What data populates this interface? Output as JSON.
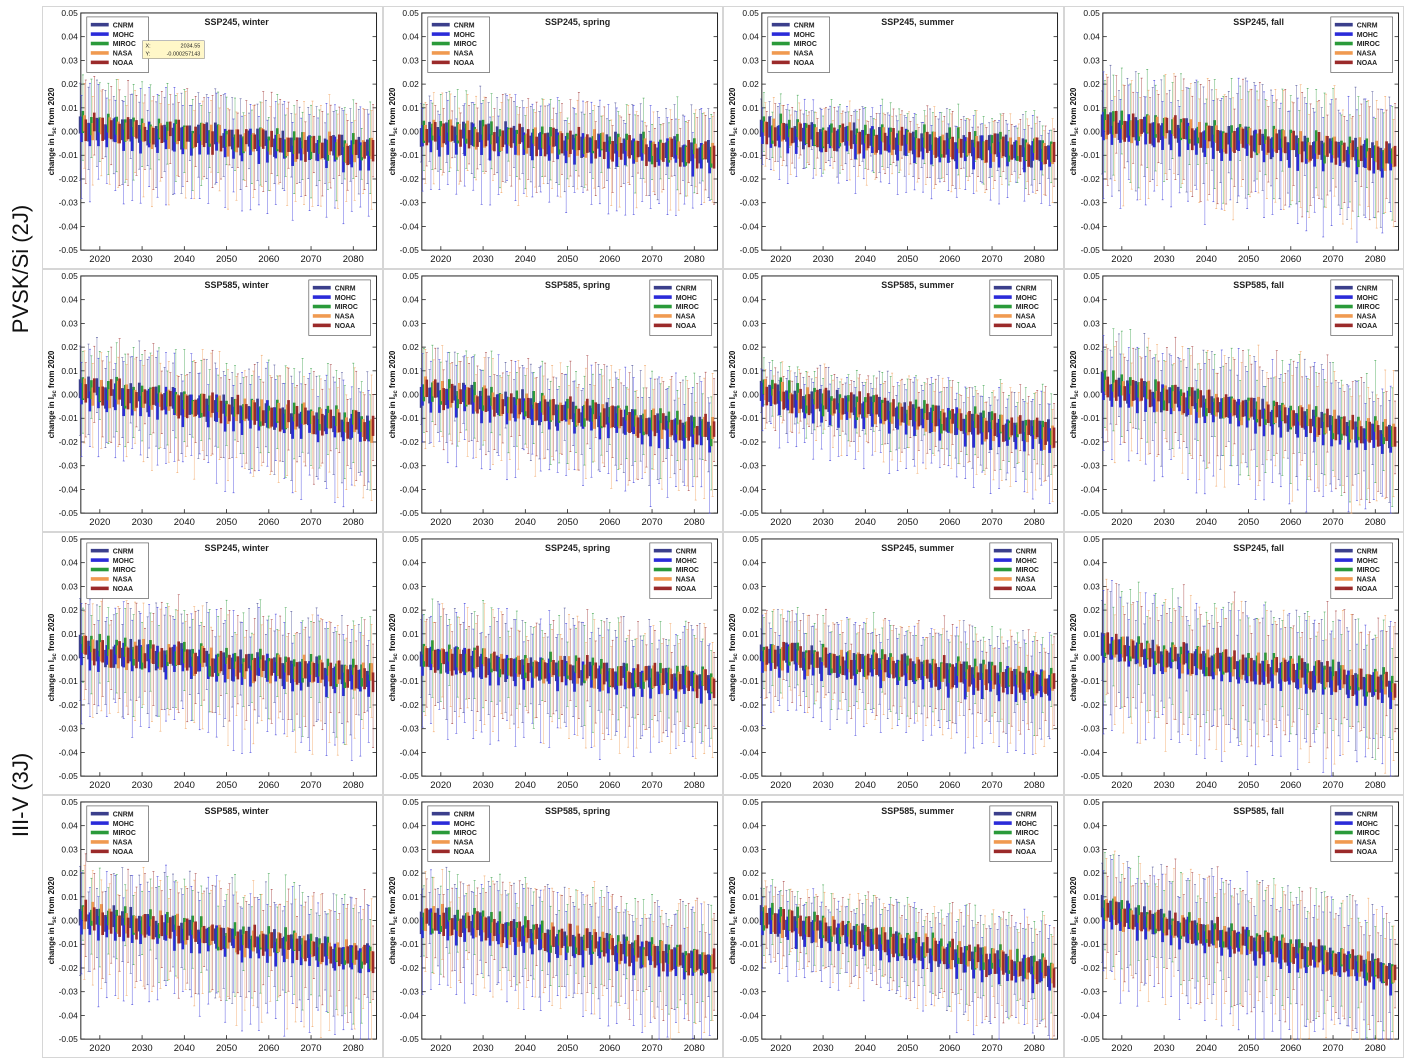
{
  "row_labels": [
    "PVSK/Si (2J)",
    "III-V (3J)"
  ],
  "y_axis_label": "change in I from 2020",
  "y_axis_label_sub": "sc",
  "tooltip": {
    "x_label": "X:",
    "x_value": "2034.55",
    "y_label": "Y:",
    "y_value": "-0.000257143"
  },
  "series_colors": {
    "CNRM": "#3b3f8c",
    "MOHC": "#2b2bd9",
    "MIROC": "#2a9a3a",
    "NASA": "#f09a50",
    "NOAA": "#9b2a2a"
  },
  "chart_data": [
    {
      "type": "box",
      "title": "SSP245, winter",
      "legend": "top-left",
      "ylim": [
        -0.05,
        0.05
      ],
      "yticks": [
        "0.05",
        "0.04",
        "0.03",
        "0.02",
        "0.01",
        "0.00",
        "-0.01",
        "-0.02",
        "-0.03",
        "-0.04",
        "-0.05"
      ],
      "xticks": [
        "2020",
        "2030",
        "2040",
        "2050",
        "2060",
        "2070",
        "2080"
      ],
      "series": [
        "CNRM",
        "MOHC",
        "MIROC",
        "NASA",
        "NOAA"
      ],
      "median_trend": [
        0.002,
        -0.009
      ],
      "whisker": [
        0.018,
        0.016
      ],
      "tooltip": true
    },
    {
      "type": "box",
      "title": "SSP245, spring",
      "legend": "top-left",
      "ylim": [
        -0.05,
        0.05
      ],
      "yticks": [
        "0.05",
        "0.04",
        "0.03",
        "0.02",
        "0.01",
        "0.00",
        "-0.01",
        "-0.02",
        "-0.03",
        "-0.04",
        "-0.05"
      ],
      "xticks": [
        "2020",
        "2030",
        "2040",
        "2050",
        "2060",
        "2070",
        "2080"
      ],
      "series": [
        "CNRM",
        "MOHC",
        "MIROC",
        "NASA",
        "NOAA"
      ],
      "median_trend": [
        0.0,
        -0.01
      ],
      "whisker": [
        0.015,
        0.016
      ]
    },
    {
      "type": "box",
      "title": "SSP245, summer",
      "legend": "top-left",
      "ylim": [
        -0.05,
        0.05
      ],
      "yticks": [
        "0.05",
        "0.04",
        "0.03",
        "0.02",
        "0.01",
        "0.00",
        "-0.01",
        "-0.02",
        "-0.03",
        "-0.04",
        "-0.05"
      ],
      "xticks": [
        "2020",
        "2030",
        "2040",
        "2050",
        "2060",
        "2070",
        "2080"
      ],
      "series": [
        "CNRM",
        "MOHC",
        "MIROC",
        "NASA",
        "NOAA"
      ],
      "median_trend": [
        0.0,
        -0.009
      ],
      "whisker": [
        0.01,
        0.012
      ]
    },
    {
      "type": "box",
      "title": "SSP245, fall",
      "legend": "top-right",
      "ylim": [
        -0.05,
        0.05
      ],
      "yticks": [
        "0.05",
        "0.04",
        "0.03",
        "0.02",
        "0.01",
        "0.00",
        "-0.01",
        "-0.02",
        "-0.03",
        "-0.04",
        "-0.05"
      ],
      "xticks": [
        "2020",
        "2030",
        "2040",
        "2050",
        "2060",
        "2070",
        "2080"
      ],
      "series": [
        "CNRM",
        "MOHC",
        "MIROC",
        "NASA",
        "NOAA"
      ],
      "median_trend": [
        0.003,
        -0.011
      ],
      "whisker": [
        0.02,
        0.022
      ]
    },
    {
      "type": "box",
      "title": "SSP585, winter",
      "legend": "top-right",
      "ylim": [
        -0.05,
        0.05
      ],
      "yticks": [
        "0.05",
        "0.04",
        "0.03",
        "0.02",
        "0.01",
        "0.00",
        "-0.01",
        "-0.02",
        "-0.03",
        "-0.04",
        "-0.05"
      ],
      "xticks": [
        "2020",
        "2030",
        "2040",
        "2050",
        "2060",
        "2070",
        "2080"
      ],
      "series": [
        "CNRM",
        "MOHC",
        "MIROC",
        "NASA",
        "NOAA"
      ],
      "median_trend": [
        0.002,
        -0.014
      ],
      "whisker": [
        0.018,
        0.02
      ]
    },
    {
      "type": "box",
      "title": "SSP585, spring",
      "legend": "top-right",
      "ylim": [
        -0.05,
        0.05
      ],
      "yticks": [
        "0.05",
        "0.04",
        "0.03",
        "0.02",
        "0.01",
        "0.00",
        "-0.01",
        "-0.02",
        "-0.03",
        "-0.04",
        "-0.05"
      ],
      "xticks": [
        "2020",
        "2030",
        "2040",
        "2050",
        "2060",
        "2070",
        "2080"
      ],
      "series": [
        "CNRM",
        "MOHC",
        "MIROC",
        "NASA",
        "NOAA"
      ],
      "median_trend": [
        0.001,
        -0.016
      ],
      "whisker": [
        0.016,
        0.02
      ]
    },
    {
      "type": "box",
      "title": "SSP585, summer",
      "legend": "top-right",
      "ylim": [
        -0.05,
        0.05
      ],
      "yticks": [
        "0.05",
        "0.04",
        "0.03",
        "0.02",
        "0.01",
        "0.00",
        "-0.01",
        "-0.02",
        "-0.03",
        "-0.04",
        "-0.05"
      ],
      "xticks": [
        "2020",
        "2030",
        "2040",
        "2050",
        "2060",
        "2070",
        "2080"
      ],
      "series": [
        "CNRM",
        "MOHC",
        "MIROC",
        "NASA",
        "NOAA"
      ],
      "median_trend": [
        0.0,
        -0.017
      ],
      "whisker": [
        0.01,
        0.016
      ]
    },
    {
      "type": "box",
      "title": "SSP585, fall",
      "legend": "top-right",
      "ylim": [
        -0.05,
        0.05
      ],
      "yticks": [
        "0.05",
        "0.04",
        "0.03",
        "0.02",
        "0.01",
        "0.00",
        "-0.01",
        "-0.02",
        "-0.03",
        "-0.04",
        "-0.05"
      ],
      "xticks": [
        "2020",
        "2030",
        "2040",
        "2050",
        "2060",
        "2070",
        "2080"
      ],
      "series": [
        "CNRM",
        "MOHC",
        "MIROC",
        "NASA",
        "NOAA"
      ],
      "median_trend": [
        0.003,
        -0.017
      ],
      "whisker": [
        0.02,
        0.024
      ]
    },
    {
      "type": "box",
      "title": "SSP245, winter",
      "legend": "top-left",
      "ylim": [
        -0.05,
        0.05
      ],
      "yticks": [
        "0.05",
        "0.04",
        "0.03",
        "0.02",
        "0.01",
        "0.00",
        "-0.01",
        "-0.02",
        "-0.03",
        "-0.04",
        "-0.05"
      ],
      "xticks": [
        "2020",
        "2030",
        "2040",
        "2050",
        "2060",
        "2070",
        "2080"
      ],
      "series": [
        "CNRM",
        "MOHC",
        "MIROC",
        "NASA",
        "NOAA"
      ],
      "median_trend": [
        0.003,
        -0.008
      ],
      "whisker": [
        0.02,
        0.022
      ]
    },
    {
      "type": "box",
      "title": "SSP245, spring",
      "legend": "top-right",
      "ylim": [
        -0.05,
        0.05
      ],
      "yticks": [
        "0.05",
        "0.04",
        "0.03",
        "0.02",
        "0.01",
        "0.00",
        "-0.01",
        "-0.02",
        "-0.03",
        "-0.04",
        "-0.05"
      ],
      "xticks": [
        "2020",
        "2030",
        "2040",
        "2050",
        "2060",
        "2070",
        "2080"
      ],
      "series": [
        "CNRM",
        "MOHC",
        "MIROC",
        "NASA",
        "NOAA"
      ],
      "median_trend": [
        0.0,
        -0.011
      ],
      "whisker": [
        0.02,
        0.022
      ]
    },
    {
      "type": "box",
      "title": "SSP245, summer",
      "legend": "top-right",
      "ylim": [
        -0.05,
        0.05
      ],
      "yticks": [
        "0.05",
        "0.04",
        "0.03",
        "0.02",
        "0.01",
        "0.00",
        "-0.01",
        "-0.02",
        "-0.03",
        "-0.04",
        "-0.05"
      ],
      "xticks": [
        "2020",
        "2030",
        "2040",
        "2050",
        "2060",
        "2070",
        "2080"
      ],
      "series": [
        "CNRM",
        "MOHC",
        "MIROC",
        "NASA",
        "NOAA"
      ],
      "median_trend": [
        0.001,
        -0.011
      ],
      "whisker": [
        0.016,
        0.018
      ]
    },
    {
      "type": "box",
      "title": "SSP245, fall",
      "legend": "top-right",
      "ylim": [
        -0.05,
        0.05
      ],
      "yticks": [
        "0.05",
        "0.04",
        "0.03",
        "0.02",
        "0.01",
        "0.00",
        "-0.01",
        "-0.02",
        "-0.03",
        "-0.04",
        "-0.05"
      ],
      "xticks": [
        "2020",
        "2030",
        "2040",
        "2050",
        "2060",
        "2070",
        "2080"
      ],
      "series": [
        "CNRM",
        "MOHC",
        "MIROC",
        "NASA",
        "NOAA"
      ],
      "median_trend": [
        0.004,
        -0.012
      ],
      "whisker": [
        0.024,
        0.026
      ]
    },
    {
      "type": "box",
      "title": "SSP585, winter",
      "legend": "top-left",
      "ylim": [
        -0.05,
        0.05
      ],
      "yticks": [
        "0.05",
        "0.04",
        "0.03",
        "0.02",
        "0.01",
        "0.00",
        "-0.01",
        "-0.02",
        "-0.03",
        "-0.04",
        "-0.05"
      ],
      "xticks": [
        "2020",
        "2030",
        "2040",
        "2050",
        "2060",
        "2070",
        "2080"
      ],
      "series": [
        "CNRM",
        "MOHC",
        "MIROC",
        "NASA",
        "NOAA"
      ],
      "median_trend": [
        0.002,
        -0.016
      ],
      "whisker": [
        0.02,
        0.024
      ]
    },
    {
      "type": "box",
      "title": "SSP585, spring",
      "legend": "top-left",
      "ylim": [
        -0.05,
        0.05
      ],
      "yticks": [
        "0.05",
        "0.04",
        "0.03",
        "0.02",
        "0.01",
        "0.00",
        "-0.01",
        "-0.02",
        "-0.03",
        "-0.04",
        "-0.05"
      ],
      "xticks": [
        "2020",
        "2030",
        "2040",
        "2050",
        "2060",
        "2070",
        "2080"
      ],
      "series": [
        "CNRM",
        "MOHC",
        "MIROC",
        "NASA",
        "NOAA"
      ],
      "median_trend": [
        0.001,
        -0.018
      ],
      "whisker": [
        0.018,
        0.022
      ]
    },
    {
      "type": "box",
      "title": "SSP585, summer",
      "legend": "top-right",
      "ylim": [
        -0.05,
        0.05
      ],
      "yticks": [
        "0.05",
        "0.04",
        "0.03",
        "0.02",
        "0.01",
        "0.00",
        "-0.01",
        "-0.02",
        "-0.03",
        "-0.04",
        "-0.05"
      ],
      "xticks": [
        "2020",
        "2030",
        "2040",
        "2050",
        "2060",
        "2070",
        "2080"
      ],
      "series": [
        "CNRM",
        "MOHC",
        "MIROC",
        "NASA",
        "NOAA"
      ],
      "median_trend": [
        0.001,
        -0.022
      ],
      "whisker": [
        0.012,
        0.02
      ]
    },
    {
      "type": "box",
      "title": "SSP585, fall",
      "legend": "top-right",
      "ylim": [
        -0.05,
        0.05
      ],
      "yticks": [
        "0.05",
        "0.04",
        "0.03",
        "0.02",
        "0.01",
        "0.00",
        "-0.01",
        "-0.02",
        "-0.03",
        "-0.04",
        "-0.05"
      ],
      "xticks": [
        "2020",
        "2030",
        "2040",
        "2050",
        "2060",
        "2070",
        "2080"
      ],
      "series": [
        "CNRM",
        "MOHC",
        "MIROC",
        "NASA",
        "NOAA"
      ],
      "median_trend": [
        0.004,
        -0.022
      ],
      "whisker": [
        0.022,
        0.026
      ]
    }
  ]
}
